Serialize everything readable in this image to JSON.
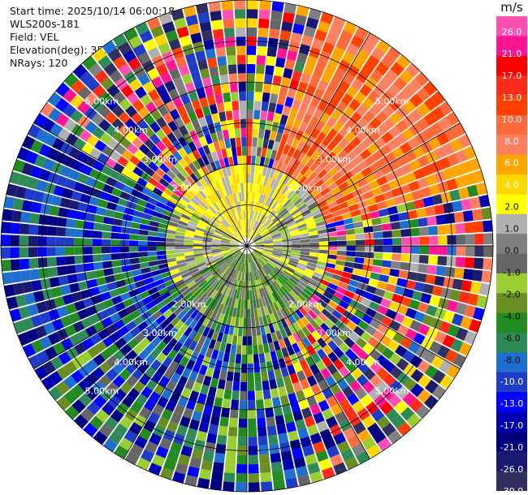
{
  "info": {
    "start_time": "Start time: 2025/10/14 06:00:18",
    "instrument": "WLS200s-181",
    "field": "Field: VEL",
    "elevation": "Elevation(deg): 35.00",
    "nrays": "NRays: 120"
  },
  "colorbar": {
    "unit": "m/s",
    "ticks": [
      "26.0",
      "21.0",
      "17.0",
      "13.0",
      "10.0",
      "8.0",
      "6.0",
      "4.0",
      "2.0",
      "1.0",
      "0.0",
      "-1.0",
      "-2.0",
      "-4.0",
      "-6.0",
      "-8.0",
      "-10.0",
      "-13.0",
      "-17.0",
      "-21.0",
      "-26.0",
      "-30.0"
    ],
    "colors": [
      "#ff4fb0",
      "#ff1493",
      "#ff0000",
      "#ff2a1a",
      "#ff4000",
      "#ff6a3a",
      "#ff8060",
      "#ffa500",
      "#ffd700",
      "#ffff00",
      "#b0b0b0",
      "#808080",
      "#666666",
      "#9acd32",
      "#6b8e23",
      "#228b22",
      "#2e8b57",
      "#1e6fcf",
      "#1e3cc8",
      "#0000ff",
      "#0000b0",
      "#000080",
      "#191970",
      "#303060"
    ]
  },
  "chart_data": {
    "type": "heatmap",
    "projection": "PPI",
    "field": "VEL",
    "units": "m/s",
    "nrays": 120,
    "elevation_deg": 35.0,
    "max_range_km": 6.0,
    "range_rings_km": [
      1.0,
      2.0,
      3.0,
      4.0,
      5.0,
      6.0
    ],
    "range_labels": [
      "2.00km",
      "3.00km",
      "4.00km",
      "5.00km"
    ],
    "color_scale_breaks": [
      -30.0,
      -26.0,
      -21.0,
      -17.0,
      -13.0,
      -10.0,
      -8.0,
      -6.0,
      -4.0,
      -2.0,
      -1.0,
      0.0,
      1.0,
      2.0,
      4.0,
      6.0,
      8.0,
      10.0,
      13.0,
      17.0,
      21.0,
      26.0
    ]
  }
}
